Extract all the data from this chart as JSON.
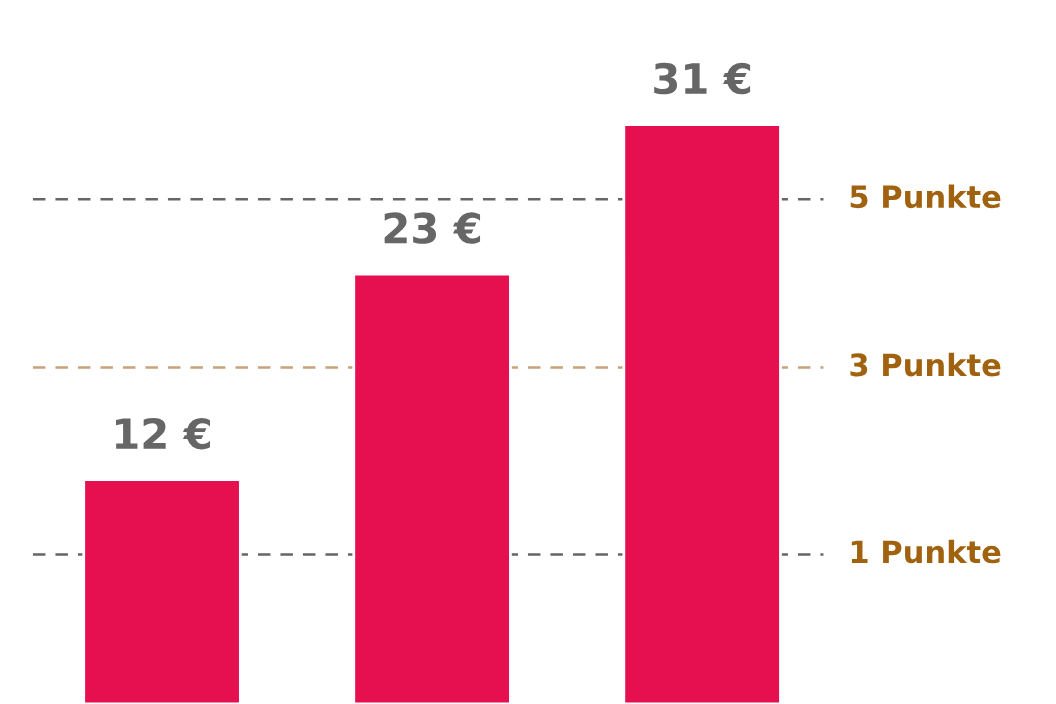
{
  "chart_data": {
    "type": "bar",
    "categories": [
      null,
      null,
      null
    ],
    "values": [
      12,
      23,
      31
    ],
    "color": "#e60f50",
    "data_labels": true,
    "value_labels": [
      "12 €",
      "23 €",
      "31 €"
    ],
    "grid": false,
    "legend": false,
    "ref_lines": [
      {
        "axis": "y",
        "value": 8,
        "label": "1 Punkte",
        "color": "#666666",
        "line_style": "dashed"
      },
      {
        "axis": "y",
        "value": 18,
        "label": "3 Punkte",
        "color": "#c9a27a",
        "line_style": "dashed"
      },
      {
        "axis": "y",
        "value": 27,
        "label": "5 Punkte",
        "color": "#666666",
        "line_style": "dashed"
      }
    ]
  }
}
